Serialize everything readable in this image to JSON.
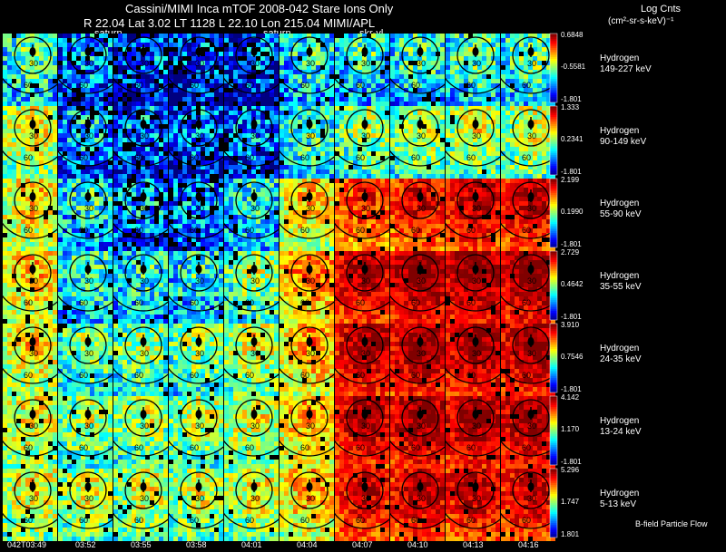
{
  "header": {
    "title": "Cassini/MIMI Inca mTOF  2008-042   Stare    Ions Only",
    "orbit_line": "R         22.04  Lat 3.02  LT 1128  L         22.10  Lon          215.04    MIMI/APL",
    "saturn_labels": [
      "saturn",
      "saturn",
      "skr-vl"
    ],
    "units_title": "Log Cnts",
    "units": "(cm²-sr-s-keV)⁻¹",
    "footnote": "B-field Particle Flow"
  },
  "chart_data": {
    "type": "heatmap",
    "description_layout": "grid of 7 energy channels (rows) x 10 time steps (columns), each an ENA image",
    "time_ticks": [
      "042T03:49",
      "03:52",
      "03:55",
      "03:58",
      "04:01",
      "04:04",
      "04:07",
      "04:10",
      "04:13",
      "04:16"
    ],
    "contour_labels": [
      "30",
      "60",
      "90"
    ],
    "rows": [
      {
        "species": "Hydrogen",
        "energy": "149-227 keV",
        "cbar": [
          "0.6848",
          "-0.5581",
          "-1.801"
        ],
        "intensity": [
          0.35,
          0.18,
          0.12,
          0.1,
          0.12,
          0.3,
          0.32,
          0.34,
          0.36,
          0.36
        ]
      },
      {
        "species": "Hydrogen",
        "energy": "90-149 keV",
        "cbar": [
          "1.333",
          "0.2341",
          "-1.801"
        ],
        "intensity": [
          0.52,
          0.22,
          0.16,
          0.14,
          0.16,
          0.34,
          0.42,
          0.45,
          0.48,
          0.48
        ]
      },
      {
        "species": "Hydrogen",
        "energy": "55-90 keV",
        "cbar": [
          "2.199",
          "0.1990",
          "-1.801"
        ],
        "intensity": [
          0.56,
          0.3,
          0.22,
          0.2,
          0.3,
          0.58,
          0.74,
          0.8,
          0.84,
          0.84
        ]
      },
      {
        "species": "Hydrogen",
        "energy": "35-55 keV",
        "cbar": [
          "2.729",
          "0.4642",
          "-1.801"
        ],
        "intensity": [
          0.58,
          0.33,
          0.3,
          0.3,
          0.42,
          0.66,
          0.86,
          0.9,
          0.9,
          0.9
        ]
      },
      {
        "species": "Hydrogen",
        "energy": "24-35 keV",
        "cbar": [
          "3.910",
          "0.7546",
          "-1.801"
        ],
        "intensity": [
          0.55,
          0.4,
          0.42,
          0.42,
          0.5,
          0.62,
          0.86,
          0.88,
          0.88,
          0.88
        ]
      },
      {
        "species": "Hydrogen",
        "energy": "13-24 keV",
        "cbar": [
          "4.142",
          "1.170",
          "-1.801"
        ],
        "intensity": [
          0.52,
          0.44,
          0.45,
          0.46,
          0.5,
          0.62,
          0.86,
          0.88,
          0.88,
          0.88
        ]
      },
      {
        "species": "Hydrogen",
        "energy": "5-13 keV",
        "cbar": [
          "5.296",
          "1.747",
          "1.801"
        ],
        "intensity": [
          0.52,
          0.48,
          0.48,
          0.48,
          0.5,
          0.6,
          0.82,
          0.84,
          0.84,
          0.84
        ]
      }
    ]
  }
}
